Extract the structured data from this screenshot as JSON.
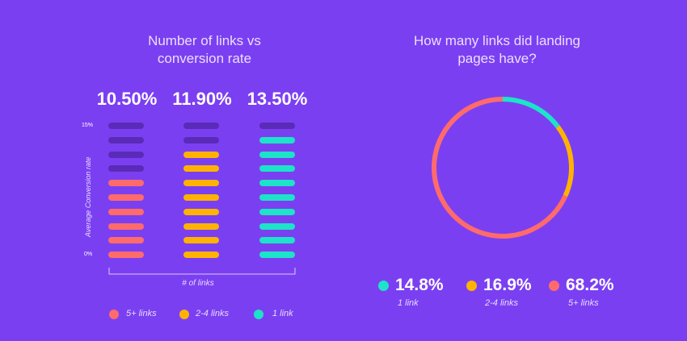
{
  "colors": {
    "background": "#7b3ff2",
    "empty": "#5a2ab8",
    "five_plus": "#ff6b6b",
    "two_to_four": "#ffb300",
    "one": "#1de3c8"
  },
  "left": {
    "title_line1": "Number of links vs",
    "title_line2": "conversion rate",
    "ylabel": "Average Conversion rate",
    "xlabel": "# of links",
    "ytick_top": "15%",
    "ytick_bottom": "0%",
    "legend": [
      {
        "label": "5+ links",
        "color": "#ff6b6b"
      },
      {
        "label": "2-4 links",
        "color": "#ffb300"
      },
      {
        "label": "1 link",
        "color": "#1de3c8"
      }
    ]
  },
  "right": {
    "title_line1": "How many links did landing",
    "title_line2": "pages have?",
    "stats": [
      {
        "value": "14.8%",
        "label": "1 link",
        "color": "#1de3c8"
      },
      {
        "value": "16.9%",
        "label": "2-4 links",
        "color": "#ffb300"
      },
      {
        "value": "68.2%",
        "label": "5+ links",
        "color": "#ff6b6b"
      }
    ]
  },
  "chart_data": [
    {
      "type": "bar",
      "categories": [
        "5+ links",
        "2-4 links",
        "1 link"
      ],
      "values": [
        10.5,
        11.9,
        13.5
      ],
      "value_labels": [
        "10.50%",
        "11.90%",
        "13.50%"
      ],
      "xlabel": "# of links",
      "ylabel": "Average Conversion rate",
      "ylim": [
        0,
        15
      ],
      "steps": 10,
      "filled_steps": [
        6,
        8,
        9
      ]
    },
    {
      "type": "pie",
      "categories": [
        "1 link",
        "2-4 links",
        "5+ links"
      ],
      "values": [
        14.8,
        16.9,
        68.2
      ],
      "colors": [
        "#1de3c8",
        "#ffb300",
        "#ff6b6b"
      ]
    }
  ]
}
